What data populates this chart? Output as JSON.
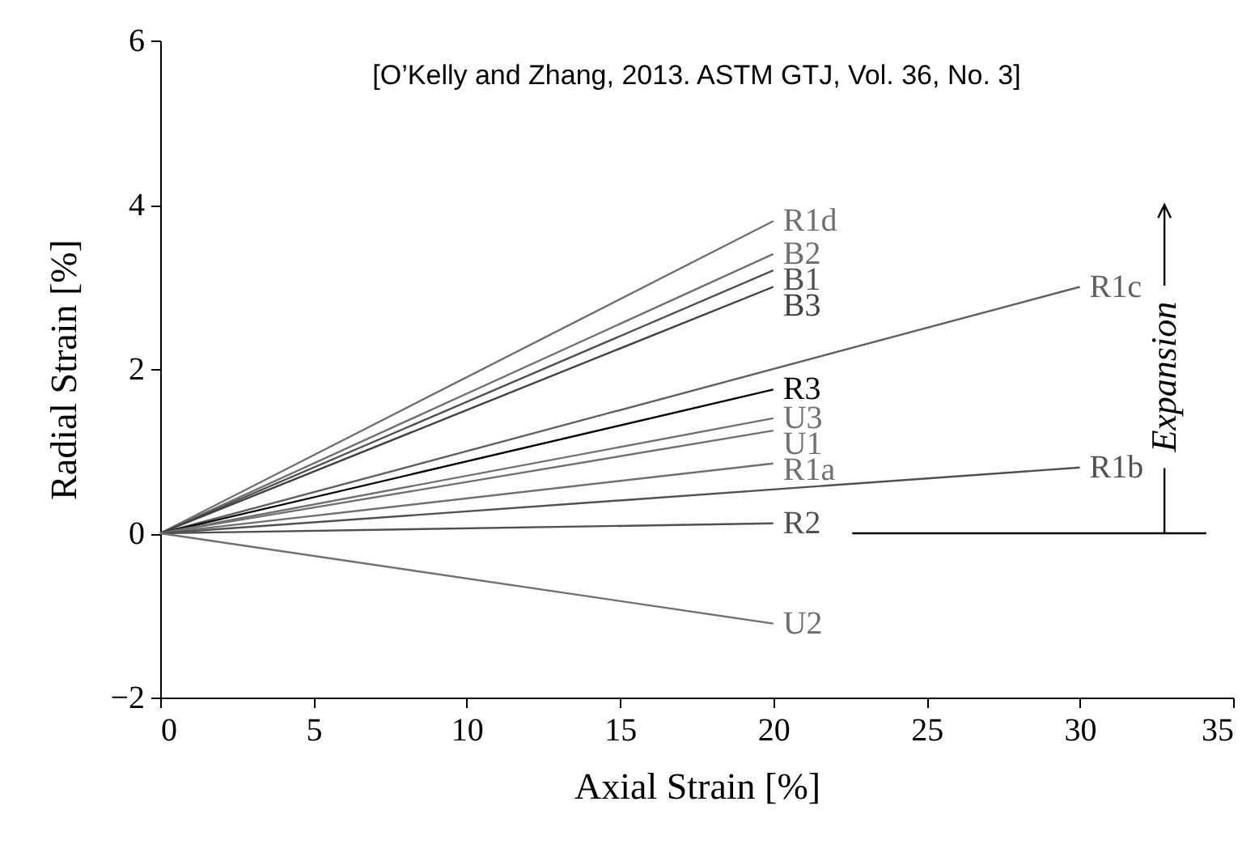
{
  "chart_data": {
    "type": "line",
    "xlabel": "Axial Strain [%]",
    "ylabel": "Radial Strain [%]",
    "annotations": [
      "[O’Kelly and Zhang, 2013. ASTM GTJ, Vol. 36, No. 3]",
      "Expansion"
    ],
    "xlim": [
      0,
      35
    ],
    "xticks": [
      0,
      5,
      10,
      15,
      20,
      25,
      30,
      35
    ],
    "ylim": [
      -2,
      6
    ],
    "yticks": [
      -2,
      0,
      2,
      4,
      6
    ],
    "grid": false,
    "legend": false,
    "marker": "none",
    "line_style": "solid",
    "series": [
      {
        "name": "R1d",
        "color": "#707070",
        "x": [
          0,
          20
        ],
        "values": [
          0,
          3.8
        ]
      },
      {
        "name": "B2",
        "color": "#707070",
        "x": [
          0,
          20
        ],
        "values": [
          0,
          3.4
        ]
      },
      {
        "name": "B1",
        "color": "#505050",
        "x": [
          0,
          20
        ],
        "values": [
          0,
          3.2
        ]
      },
      {
        "name": "B3",
        "color": "#404040",
        "x": [
          0,
          20
        ],
        "values": [
          0,
          3.0
        ]
      },
      {
        "name": "R1c",
        "color": "#606060",
        "x": [
          0,
          30
        ],
        "values": [
          0,
          3.0
        ]
      },
      {
        "name": "R3",
        "color": "#000000",
        "x": [
          0,
          20
        ],
        "values": [
          0,
          1.75
        ]
      },
      {
        "name": "U3",
        "color": "#707070",
        "x": [
          0,
          20
        ],
        "values": [
          0,
          1.4
        ]
      },
      {
        "name": "U1",
        "color": "#707070",
        "x": [
          0,
          20
        ],
        "values": [
          0,
          1.25
        ]
      },
      {
        "name": "R1a",
        "color": "#707070",
        "x": [
          0,
          20
        ],
        "values": [
          0,
          0.85
        ]
      },
      {
        "name": "R1b",
        "color": "#505050",
        "x": [
          0,
          30
        ],
        "values": [
          0,
          0.8
        ]
      },
      {
        "name": "R2",
        "color": "#505050",
        "x": [
          0,
          20
        ],
        "values": [
          0,
          0.12
        ]
      },
      {
        "name": "U2",
        "color": "#707070",
        "x": [
          0,
          20
        ],
        "values": [
          0,
          -1.1
        ]
      }
    ]
  }
}
